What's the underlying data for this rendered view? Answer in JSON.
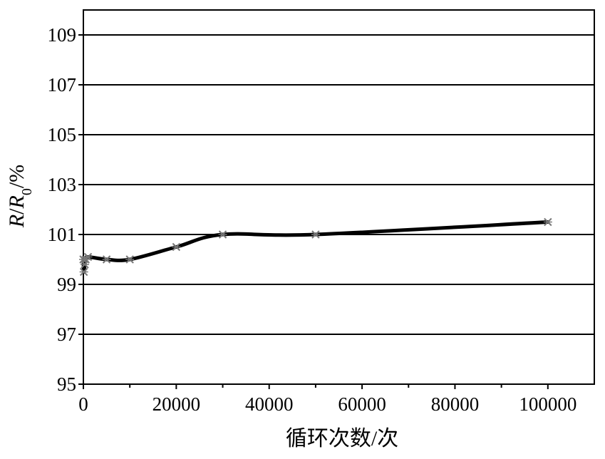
{
  "chart_data": {
    "type": "line",
    "xlabel": "循环次数/次",
    "ylabel": {
      "italic_r": "R",
      "slash1": "/",
      "italic_r0": "R",
      "subscript": "0",
      "tail": "/%"
    },
    "xlim": [
      0,
      110000
    ],
    "ylim": [
      95,
      110
    ],
    "x_ticks": [
      0,
      20000,
      40000,
      60000,
      80000,
      100000
    ],
    "x_tick_labels": [
      "0",
      "20000",
      "40000",
      "60000",
      "80000",
      "100000"
    ],
    "y_ticks": [
      95,
      97,
      99,
      101,
      103,
      105,
      107,
      109
    ],
    "y_tick_labels": [
      "95",
      "97",
      "99",
      "101",
      "103",
      "105",
      "107",
      "109"
    ],
    "grid": "horizontal",
    "legend": "none",
    "line_color": "#000000",
    "grid_color": "#000000",
    "series": [
      {
        "x": [
          0,
          100,
          300,
          500,
          1000,
          5000,
          10000,
          20000,
          30000,
          50000,
          100000
        ],
        "y": [
          100.0,
          99.5,
          99.8,
          100.0,
          100.1,
          100.0,
          100.0,
          100.5,
          101.0,
          101.0,
          101.5
        ]
      }
    ]
  }
}
